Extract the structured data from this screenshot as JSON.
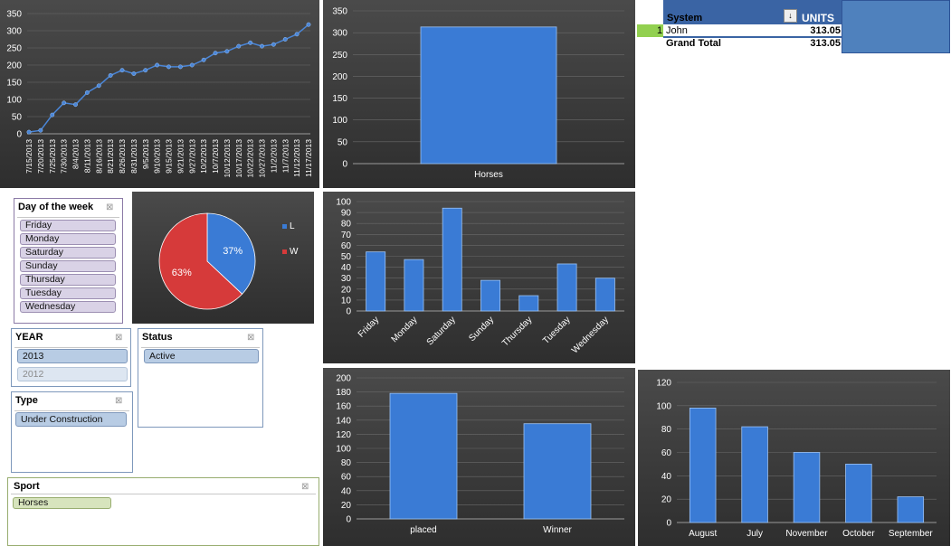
{
  "colors": {
    "bar": "#3a7bd5",
    "pie_l": "#3a7bd5",
    "pie_w": "#d63a3a",
    "line": "#4a86d8"
  },
  "line_chart": {
    "chart_data": {
      "type": "line",
      "x": [
        "7/15/2013",
        "7/20/2013",
        "7/25/2013",
        "7/30/2013",
        "8/4/2013",
        "8/11/2013",
        "8/16/2013",
        "8/21/2013",
        "8/26/2013",
        "8/31/2013",
        "9/5/2013",
        "9/10/2013",
        "9/15/2013",
        "9/21/2013",
        "9/27/2013",
        "10/2/2013",
        "10/7/2013",
        "10/12/2013",
        "10/17/2013",
        "10/22/2013",
        "10/27/2013",
        "11/2/2013",
        "11/7/2013",
        "11/12/2013",
        "11/17/2013"
      ],
      "values": [
        5,
        10,
        55,
        90,
        85,
        120,
        140,
        170,
        185,
        175,
        185,
        200,
        195,
        195,
        200,
        215,
        235,
        240,
        255,
        265,
        255,
        260,
        275,
        290,
        318
      ],
      "ylim": [
        0,
        350
      ],
      "yticks": [
        "0",
        "50",
        "100",
        "150",
        "200",
        "250",
        "300",
        "350"
      ]
    }
  },
  "horses_chart": {
    "chart_data": {
      "type": "bar",
      "categories": [
        "Horses"
      ],
      "values": [
        313.05
      ],
      "ylim": [
        0,
        350
      ],
      "yticks": [
        "0",
        "50",
        "100",
        "150",
        "200",
        "250",
        "300",
        "350"
      ]
    }
  },
  "dow_chart": {
    "chart_data": {
      "type": "bar",
      "categories": [
        "Friday",
        "Monday",
        "Saturday",
        "Sunday",
        "Thursday",
        "Tuesday",
        "Wednesday"
      ],
      "values": [
        54,
        47,
        94,
        28,
        14,
        43,
        30
      ],
      "ylim": [
        0,
        100
      ],
      "yticks": [
        "0",
        "10",
        "20",
        "30",
        "40",
        "50",
        "60",
        "70",
        "80",
        "90",
        "100"
      ]
    }
  },
  "status_chart": {
    "chart_data": {
      "type": "bar",
      "categories": [
        "placed",
        "Winner"
      ],
      "values": [
        178,
        135
      ],
      "ylim": [
        0,
        200
      ],
      "yticks": [
        "0",
        "20",
        "40",
        "60",
        "80",
        "100",
        "120",
        "140",
        "160",
        "180",
        "200"
      ]
    }
  },
  "month_chart": {
    "chart_data": {
      "type": "bar",
      "categories": [
        "August",
        "July",
        "November",
        "October",
        "September"
      ],
      "values": [
        98,
        82,
        60,
        50,
        22
      ],
      "ylim": [
        0,
        120
      ],
      "yticks": [
        "0",
        "20",
        "40",
        "60",
        "80",
        "100",
        "120"
      ]
    }
  },
  "pie_chart": {
    "chart_data": {
      "type": "pie",
      "categories": [
        "L",
        "W"
      ],
      "values": [
        37,
        63
      ],
      "labels": [
        "37%",
        "63%"
      ],
      "legend": [
        "L",
        "W"
      ]
    }
  },
  "pivot": {
    "header_system": "System",
    "header_units": "UNITS",
    "row_index": "1",
    "row_name": "John",
    "row_value": "313.05",
    "total_label": "Grand Total",
    "total_value": "313.05"
  },
  "slicers": {
    "dow": {
      "title": "Day of the week",
      "items": [
        "Friday",
        "Monday",
        "Saturday",
        "Sunday",
        "Thursday",
        "Tuesday",
        "Wednesday"
      ]
    },
    "year": {
      "title": "YEAR",
      "items": [
        "2013",
        "2012"
      ]
    },
    "status": {
      "title": "Status",
      "items": [
        "Active"
      ]
    },
    "type": {
      "title": "Type",
      "items": [
        "Under Construction"
      ]
    },
    "sport": {
      "title": "Sport",
      "items": [
        "Horses"
      ]
    }
  }
}
